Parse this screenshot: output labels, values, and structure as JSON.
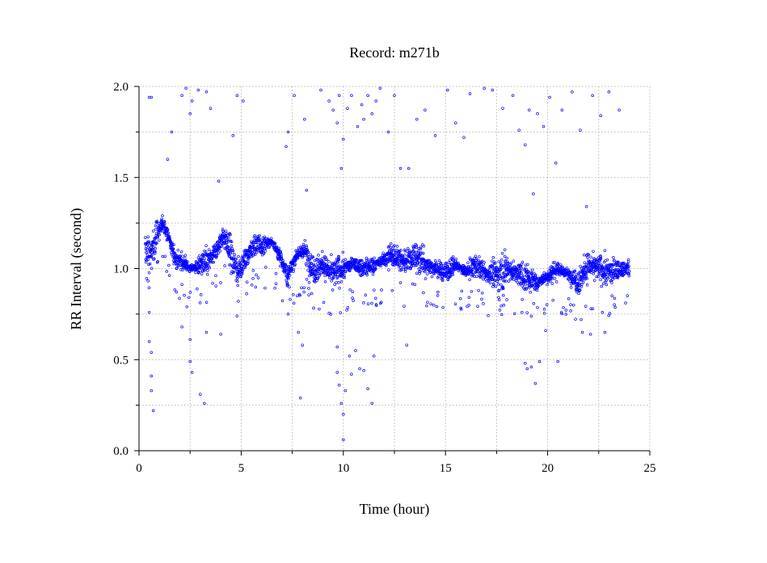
{
  "chart_data": {
    "type": "scatter",
    "title": "Record:  m271b",
    "xlabel": "Time (hour)",
    "ylabel": "RR Interval (second)",
    "xlim": [
      0,
      25
    ],
    "ylim": [
      0,
      2.0
    ],
    "xticks": [
      0,
      5,
      10,
      15,
      20,
      25
    ],
    "xtick_labels": [
      "0",
      "5",
      "10",
      "15",
      "20",
      "25"
    ],
    "yticks": [
      0.0,
      0.5,
      1.0,
      1.5,
      2.0
    ],
    "ytick_labels": [
      "0.0",
      "0.5",
      "1.0",
      "1.5",
      "2.0"
    ],
    "grid": true,
    "marker": "open circle",
    "series_color": "#0000ff",
    "series": [
      {
        "values_note": "",
        "trend": [
          [
            0.3,
            1.1
          ],
          [
            0.6,
            1.08
          ],
          [
            0.9,
            1.2
          ],
          [
            1.2,
            1.25
          ],
          [
            1.5,
            1.15
          ],
          [
            1.8,
            1.05
          ],
          [
            2.2,
            1.03
          ],
          [
            2.5,
            1.0
          ],
          [
            3.0,
            1.02
          ],
          [
            3.5,
            1.05
          ],
          [
            3.8,
            1.1
          ],
          [
            4.1,
            1.18
          ],
          [
            4.4,
            1.12
          ],
          [
            4.8,
            0.98
          ],
          [
            5.2,
            1.05
          ],
          [
            5.6,
            1.13
          ],
          [
            6.0,
            1.12
          ],
          [
            6.5,
            1.15
          ],
          [
            7.0,
            1.05
          ],
          [
            7.3,
            0.95
          ],
          [
            7.7,
            1.08
          ],
          [
            8.1,
            1.1
          ],
          [
            8.5,
            1.0
          ],
          [
            9.0,
            1.02
          ],
          [
            9.5,
            0.97
          ],
          [
            10.0,
            1.0
          ],
          [
            10.5,
            1.03
          ],
          [
            11.0,
            1.0
          ],
          [
            11.5,
            1.02
          ],
          [
            12.0,
            1.05
          ],
          [
            12.5,
            1.08
          ],
          [
            13.0,
            1.03
          ],
          [
            13.5,
            1.07
          ],
          [
            14.0,
            1.03
          ],
          [
            14.5,
            1.0
          ],
          [
            15.0,
            0.98
          ],
          [
            15.5,
            1.02
          ],
          [
            16.0,
            0.98
          ],
          [
            16.5,
            1.02
          ],
          [
            17.0,
            0.97
          ],
          [
            17.5,
            0.97
          ],
          [
            18.0,
            1.0
          ],
          [
            18.5,
            0.97
          ],
          [
            19.0,
            0.95
          ],
          [
            19.5,
            0.92
          ],
          [
            20.0,
            0.96
          ],
          [
            20.5,
            1.0
          ],
          [
            21.0,
            0.97
          ],
          [
            21.5,
            0.93
          ],
          [
            22.0,
            1.02
          ],
          [
            22.5,
            1.0
          ],
          [
            23.0,
            0.98
          ],
          [
            23.5,
            1.0
          ],
          [
            24.0,
            1.0
          ]
        ],
        "outliers": [
          [
            0.5,
            1.94
          ],
          [
            0.6,
            1.94
          ],
          [
            1.4,
            1.6
          ],
          [
            1.6,
            1.75
          ],
          [
            2.1,
            1.95
          ],
          [
            2.3,
            1.99
          ],
          [
            2.5,
            1.85
          ],
          [
            2.6,
            1.92
          ],
          [
            2.9,
            1.98
          ],
          [
            3.3,
            1.97
          ],
          [
            3.5,
            1.88
          ],
          [
            3.9,
            1.48
          ],
          [
            4.6,
            1.73
          ],
          [
            4.8,
            1.95
          ],
          [
            5.1,
            1.92
          ],
          [
            7.2,
            1.67
          ],
          [
            7.3,
            1.75
          ],
          [
            7.6,
            1.95
          ],
          [
            8.1,
            1.82
          ],
          [
            8.2,
            1.43
          ],
          [
            8.9,
            1.98
          ],
          [
            9.3,
            1.92
          ],
          [
            9.5,
            1.87
          ],
          [
            9.7,
            1.8
          ],
          [
            9.8,
            1.95
          ],
          [
            9.9,
            1.55
          ],
          [
            10.0,
            1.71
          ],
          [
            10.2,
            1.88
          ],
          [
            10.4,
            1.95
          ],
          [
            10.7,
            1.78
          ],
          [
            10.9,
            1.9
          ],
          [
            11.0,
            1.82
          ],
          [
            11.2,
            1.95
          ],
          [
            11.4,
            1.85
          ],
          [
            11.6,
            1.92
          ],
          [
            11.8,
            1.99
          ],
          [
            12.2,
            1.75
          ],
          [
            12.5,
            1.95
          ],
          [
            12.8,
            1.55
          ],
          [
            13.2,
            1.55
          ],
          [
            13.6,
            1.82
          ],
          [
            14.0,
            1.87
          ],
          [
            14.5,
            1.73
          ],
          [
            15.1,
            1.98
          ],
          [
            15.5,
            1.8
          ],
          [
            15.9,
            1.72
          ],
          [
            16.2,
            1.96
          ],
          [
            16.9,
            1.99
          ],
          [
            17.3,
            1.98
          ],
          [
            17.8,
            1.88
          ],
          [
            18.3,
            1.95
          ],
          [
            18.6,
            1.76
          ],
          [
            18.9,
            1.68
          ],
          [
            19.1,
            1.87
          ],
          [
            19.3,
            1.41
          ],
          [
            19.5,
            1.85
          ],
          [
            19.8,
            1.78
          ],
          [
            20.1,
            1.94
          ],
          [
            20.4,
            1.58
          ],
          [
            20.7,
            1.87
          ],
          [
            21.2,
            1.97
          ],
          [
            21.6,
            1.76
          ],
          [
            21.9,
            1.34
          ],
          [
            22.2,
            1.95
          ],
          [
            22.6,
            1.84
          ],
          [
            23.0,
            1.97
          ],
          [
            23.5,
            1.87
          ],
          [
            0.5,
            0.76
          ],
          [
            0.5,
            0.6
          ],
          [
            0.6,
            0.54
          ],
          [
            0.6,
            0.41
          ],
          [
            0.6,
            0.33
          ],
          [
            0.7,
            0.22
          ],
          [
            2.1,
            0.68
          ],
          [
            2.5,
            0.61
          ],
          [
            2.5,
            0.49
          ],
          [
            2.6,
            0.43
          ],
          [
            3.0,
            0.31
          ],
          [
            3.2,
            0.26
          ],
          [
            3.3,
            0.65
          ],
          [
            4.0,
            0.64
          ],
          [
            4.8,
            0.74
          ],
          [
            7.3,
            0.75
          ],
          [
            7.8,
            0.65
          ],
          [
            7.9,
            0.29
          ],
          [
            8.0,
            0.58
          ],
          [
            9.7,
            0.57
          ],
          [
            9.7,
            0.43
          ],
          [
            9.8,
            0.36
          ],
          [
            9.9,
            0.26
          ],
          [
            10.0,
            0.2
          ],
          [
            10.0,
            0.06
          ],
          [
            10.1,
            0.33
          ],
          [
            10.3,
            0.52
          ],
          [
            10.4,
            0.42
          ],
          [
            10.6,
            0.55
          ],
          [
            10.8,
            0.45
          ],
          [
            11.0,
            0.44
          ],
          [
            11.2,
            0.34
          ],
          [
            11.4,
            0.26
          ],
          [
            11.5,
            0.52
          ],
          [
            13.1,
            0.58
          ],
          [
            18.9,
            0.48
          ],
          [
            19.0,
            0.45
          ],
          [
            19.2,
            0.46
          ],
          [
            19.4,
            0.37
          ],
          [
            19.6,
            0.49
          ],
          [
            19.9,
            0.66
          ],
          [
            20.5,
            0.49
          ],
          [
            21.7,
            0.65
          ],
          [
            22.1,
            0.64
          ],
          [
            22.8,
            0.65
          ]
        ]
      }
    ]
  }
}
